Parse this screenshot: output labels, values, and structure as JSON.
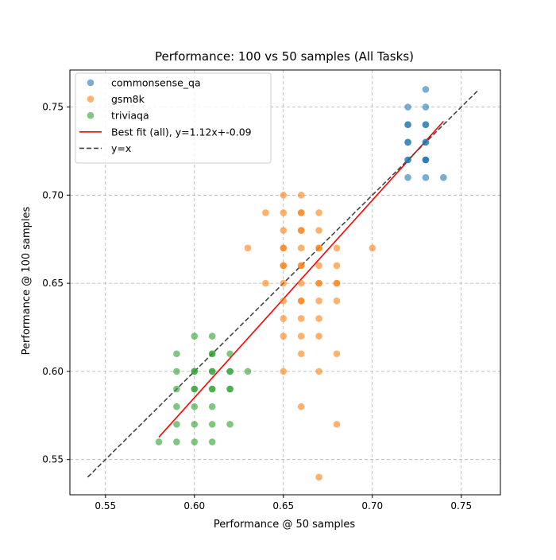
{
  "chart_data": {
    "type": "scatter",
    "title": "Performance: 100 vs 50 samples (All Tasks)",
    "xlabel": "Performance @ 50 samples",
    "ylabel": "Performance @ 100 samples",
    "xlim": [
      0.53,
      0.772
    ],
    "ylim": [
      0.53,
      0.771
    ],
    "xticks": [
      0.55,
      0.6,
      0.65,
      0.7,
      0.75
    ],
    "xtick_labels": [
      "0.55",
      "0.60",
      "0.65",
      "0.70",
      "0.75"
    ],
    "yticks": [
      0.55,
      0.6,
      0.65,
      0.7,
      0.75
    ],
    "ytick_labels": [
      "0.55",
      "0.60",
      "0.65",
      "0.70",
      "0.75"
    ],
    "grid": true,
    "legend_position": "top-left",
    "series": [
      {
        "name": "commonsense_qa",
        "color": "#1f77b4",
        "points": [
          [
            0.72,
            0.75
          ],
          [
            0.72,
            0.74
          ],
          [
            0.72,
            0.73
          ],
          [
            0.72,
            0.72
          ],
          [
            0.72,
            0.71
          ],
          [
            0.73,
            0.76
          ],
          [
            0.73,
            0.75
          ],
          [
            0.73,
            0.74
          ],
          [
            0.73,
            0.73
          ],
          [
            0.73,
            0.72
          ],
          [
            0.73,
            0.71
          ],
          [
            0.74,
            0.71
          ],
          [
            0.72,
            0.74
          ],
          [
            0.72,
            0.73
          ],
          [
            0.72,
            0.72
          ],
          [
            0.73,
            0.74
          ],
          [
            0.73,
            0.73
          ],
          [
            0.73,
            0.72
          ],
          [
            0.73,
            0.72
          ]
        ]
      },
      {
        "name": "gsm8k",
        "color": "#ff7f0e",
        "points": [
          [
            0.63,
            0.67
          ],
          [
            0.64,
            0.69
          ],
          [
            0.64,
            0.65
          ],
          [
            0.65,
            0.7
          ],
          [
            0.65,
            0.69
          ],
          [
            0.65,
            0.68
          ],
          [
            0.65,
            0.67
          ],
          [
            0.65,
            0.66
          ],
          [
            0.65,
            0.65
          ],
          [
            0.65,
            0.64
          ],
          [
            0.65,
            0.63
          ],
          [
            0.65,
            0.62
          ],
          [
            0.65,
            0.6
          ],
          [
            0.66,
            0.7
          ],
          [
            0.66,
            0.69
          ],
          [
            0.66,
            0.68
          ],
          [
            0.66,
            0.67
          ],
          [
            0.66,
            0.66
          ],
          [
            0.66,
            0.65
          ],
          [
            0.66,
            0.64
          ],
          [
            0.66,
            0.63
          ],
          [
            0.66,
            0.62
          ],
          [
            0.66,
            0.61
          ],
          [
            0.66,
            0.58
          ],
          [
            0.67,
            0.69
          ],
          [
            0.67,
            0.68
          ],
          [
            0.67,
            0.67
          ],
          [
            0.67,
            0.66
          ],
          [
            0.67,
            0.65
          ],
          [
            0.67,
            0.64
          ],
          [
            0.67,
            0.63
          ],
          [
            0.67,
            0.62
          ],
          [
            0.67,
            0.6
          ],
          [
            0.67,
            0.54
          ],
          [
            0.68,
            0.67
          ],
          [
            0.68,
            0.66
          ],
          [
            0.68,
            0.65
          ],
          [
            0.68,
            0.64
          ],
          [
            0.68,
            0.61
          ],
          [
            0.68,
            0.57
          ],
          [
            0.7,
            0.67
          ],
          [
            0.65,
            0.67
          ],
          [
            0.65,
            0.66
          ],
          [
            0.66,
            0.69
          ],
          [
            0.66,
            0.68
          ],
          [
            0.66,
            0.66
          ],
          [
            0.66,
            0.64
          ],
          [
            0.67,
            0.67
          ],
          [
            0.67,
            0.65
          ],
          [
            0.68,
            0.65
          ]
        ]
      },
      {
        "name": "triviaqa",
        "color": "#2ca02c",
        "points": [
          [
            0.58,
            0.56
          ],
          [
            0.59,
            0.61
          ],
          [
            0.59,
            0.6
          ],
          [
            0.59,
            0.59
          ],
          [
            0.59,
            0.58
          ],
          [
            0.59,
            0.57
          ],
          [
            0.59,
            0.56
          ],
          [
            0.6,
            0.62
          ],
          [
            0.6,
            0.6
          ],
          [
            0.6,
            0.59
          ],
          [
            0.6,
            0.58
          ],
          [
            0.6,
            0.57
          ],
          [
            0.6,
            0.56
          ],
          [
            0.61,
            0.62
          ],
          [
            0.61,
            0.61
          ],
          [
            0.61,
            0.6
          ],
          [
            0.61,
            0.59
          ],
          [
            0.61,
            0.58
          ],
          [
            0.61,
            0.57
          ],
          [
            0.61,
            0.56
          ],
          [
            0.62,
            0.61
          ],
          [
            0.62,
            0.6
          ],
          [
            0.62,
            0.59
          ],
          [
            0.62,
            0.57
          ],
          [
            0.63,
            0.6
          ],
          [
            0.6,
            0.6
          ],
          [
            0.6,
            0.59
          ],
          [
            0.61,
            0.61
          ],
          [
            0.61,
            0.6
          ],
          [
            0.61,
            0.59
          ],
          [
            0.62,
            0.6
          ],
          [
            0.62,
            0.59
          ]
        ]
      }
    ],
    "lines": [
      {
        "name": "Best fit (all), y=1.12x+-0.09",
        "color": "#ff0000",
        "dash": "solid",
        "x": [
          0.58,
          0.74
        ],
        "y": [
          0.5627,
          0.7419
        ]
      },
      {
        "name": "y=x",
        "color": "#444444",
        "dash": "dashed",
        "x": [
          0.54,
          0.76
        ],
        "y": [
          0.54,
          0.76
        ]
      }
    ]
  }
}
